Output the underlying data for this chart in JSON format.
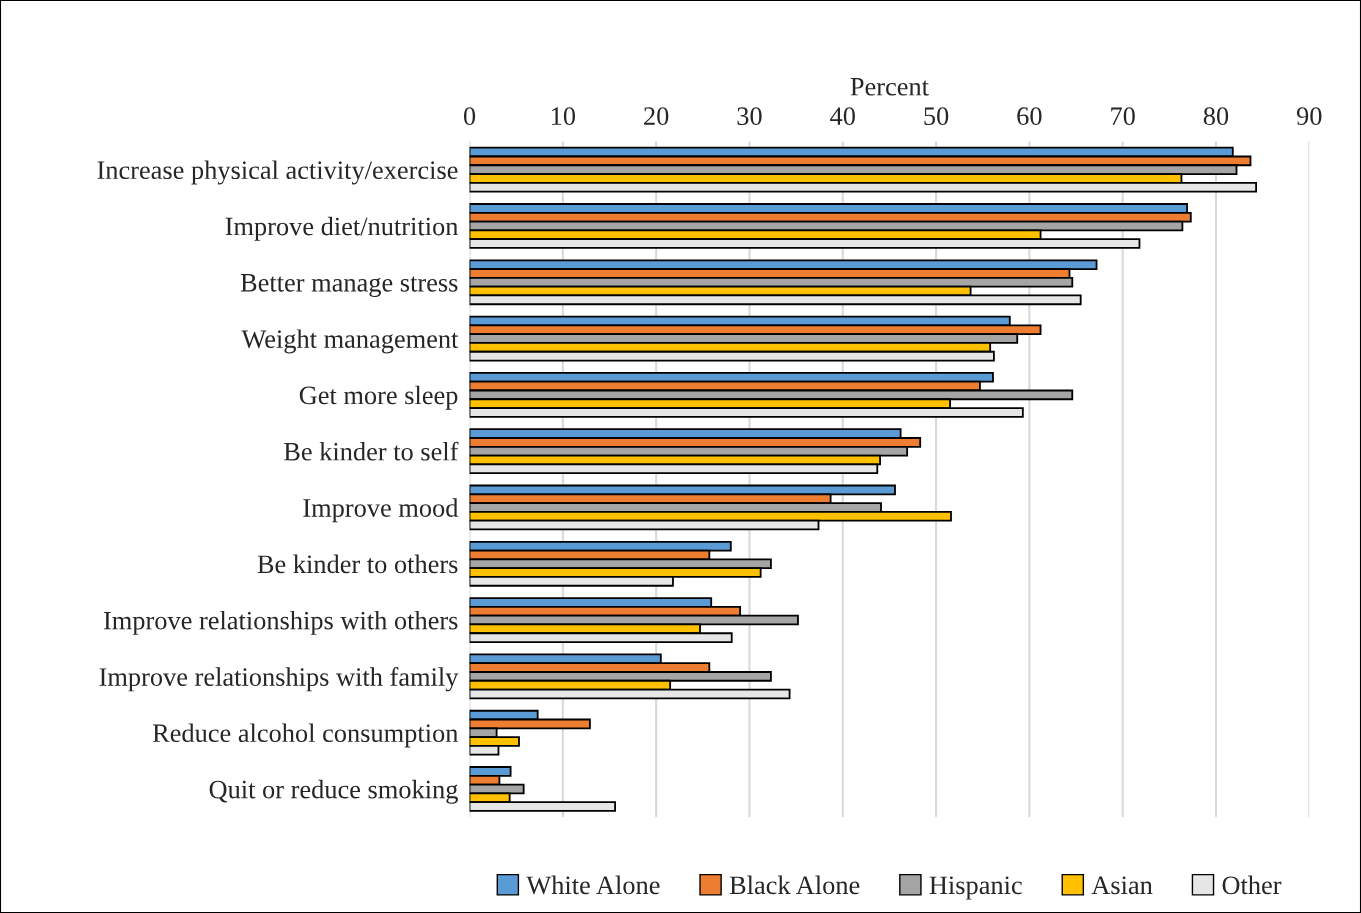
{
  "chart_data": {
    "type": "bar",
    "orientation": "horizontal",
    "xlabel": "Percent",
    "categories": [
      "Increase physical activity/exercise",
      "Improve diet/nutrition",
      "Better manage stress",
      "Weight management",
      "Get more sleep",
      "Be kinder to self",
      "Improve mood",
      "Be kinder to others",
      "Improve relationships with others",
      "Improve relationships with family",
      "Reduce alcohol consumption",
      "Quit or reduce smoking"
    ],
    "series": [
      {
        "name": "White Alone",
        "color": "#5b9bd5",
        "values": [
          81.8,
          76.9,
          67.2,
          57.9,
          56.1,
          46.2,
          45.6,
          28.0,
          25.9,
          20.5,
          7.3,
          4.4
        ]
      },
      {
        "name": "Black Alone",
        "color": "#ed7d31",
        "values": [
          83.7,
          77.3,
          64.3,
          61.2,
          54.7,
          48.3,
          38.7,
          25.7,
          29.0,
          25.7,
          12.9,
          3.2
        ]
      },
      {
        "name": "Hispanic",
        "color": "#a5a5a5",
        "values": [
          82.2,
          76.4,
          64.6,
          58.7,
          64.6,
          46.9,
          44.1,
          32.3,
          35.2,
          32.3,
          2.9,
          5.8
        ]
      },
      {
        "name": "Asian",
        "color": "#ffc000",
        "values": [
          76.3,
          61.2,
          53.7,
          55.8,
          51.5,
          44.0,
          51.6,
          31.2,
          24.7,
          21.5,
          5.3,
          4.3
        ]
      },
      {
        "name": "Other",
        "color": "#e7e6e6",
        "values": [
          84.3,
          71.8,
          65.5,
          56.2,
          59.3,
          43.7,
          37.4,
          21.8,
          28.1,
          34.3,
          3.1,
          15.6
        ]
      }
    ],
    "xlim": [
      0,
      90
    ],
    "xticks": [
      0,
      10,
      20,
      30,
      40,
      50,
      60,
      70,
      80,
      90
    ],
    "grid": "x",
    "legend": "bottom"
  }
}
